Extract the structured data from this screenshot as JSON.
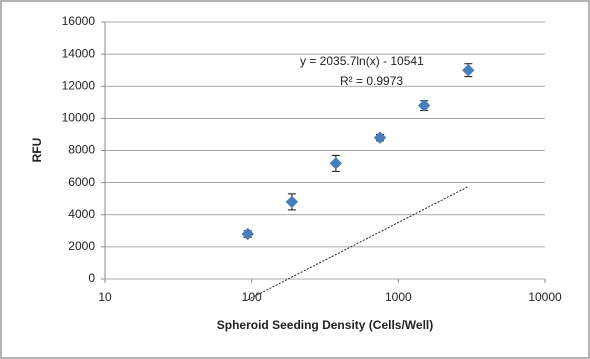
{
  "chart_data": {
    "type": "scatter",
    "x_label": "Spheroid Seeding Density (Cells/Well)",
    "y_label": "RFU",
    "x": [
      94,
      188,
      375,
      750,
      1500,
      3000
    ],
    "series": [
      {
        "name": "RFU",
        "color": "#4a7ebb",
        "values": [
          2800,
          4800,
          7200,
          8800,
          10800,
          13000
        ],
        "errors": [
          200,
          500,
          500,
          200,
          300,
          400
        ]
      }
    ],
    "xlim": [
      10,
      10000
    ],
    "xticks": [
      10,
      100,
      1000,
      10000
    ],
    "x_scale": "log",
    "ylim": [
      0,
      16000
    ],
    "yticks": [
      0,
      2000,
      4000,
      6000,
      8000,
      10000,
      12000,
      14000,
      16000
    ],
    "grid": true,
    "trendline": {
      "equation": "y = 2035.7ln(x) - 10541",
      "r2_label": "R² = 0.9973"
    }
  }
}
